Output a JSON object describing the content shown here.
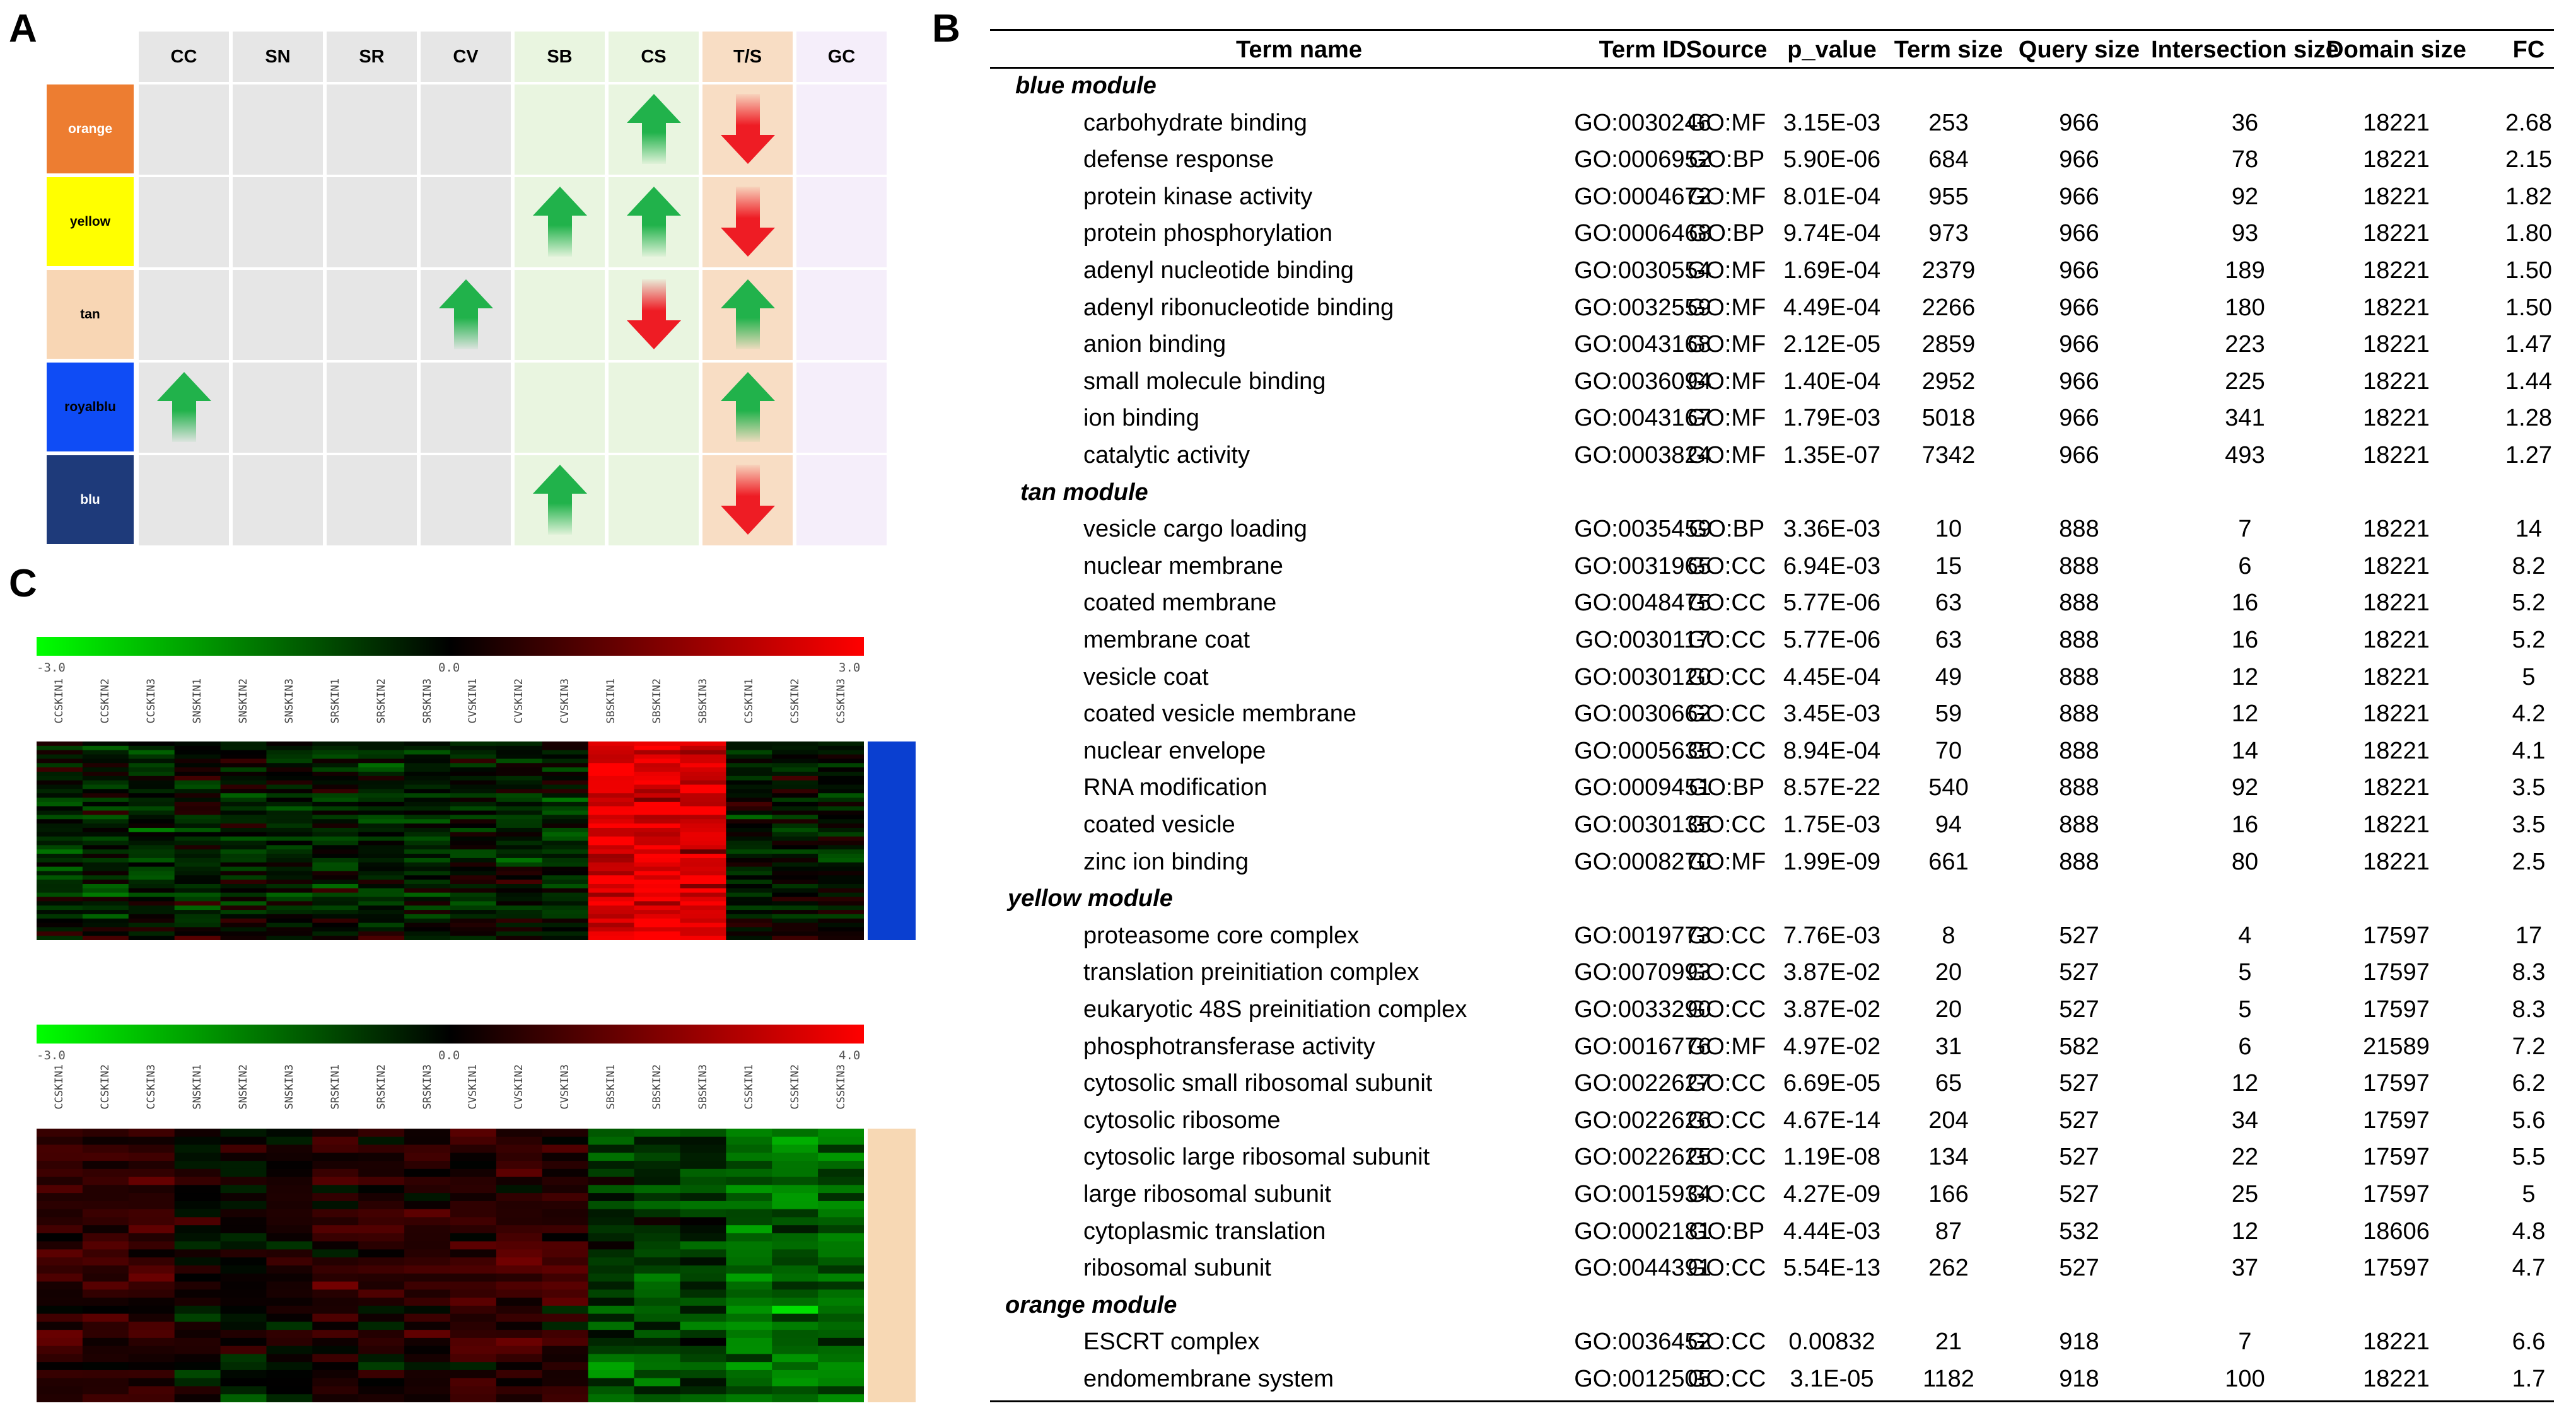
{
  "panel_letters": {
    "a": "A",
    "b": "B",
    "c": "C"
  },
  "panelA": {
    "columns": [
      "CC",
      "SN",
      "SR",
      "CV",
      "SB",
      "CS",
      "T/S",
      "GC"
    ],
    "rows": [
      {
        "label": "orange",
        "color": "#ED7D31",
        "text_color": "#ffffff",
        "arrows": {
          "CS": "up",
          "T/S": "down"
        }
      },
      {
        "label": "yellow",
        "color": "#FFFF00",
        "text_color": "#000000",
        "arrows": {
          "SB": "up",
          "CS": "up",
          "T/S": "down"
        }
      },
      {
        "label": "tan",
        "color": "#F8D6B4",
        "text_color": "#000000",
        "arrows": {
          "CV": "up",
          "CS": "down",
          "T/S": "up"
        }
      },
      {
        "label": "royalblu",
        "color": "#0F4CF5",
        "text_color": "#000000",
        "arrows": {
          "CC": "up",
          "T/S": "up"
        }
      },
      {
        "label": "blu",
        "color": "#1E3A7A",
        "text_color": "#ffffff",
        "arrows": {
          "SB": "up",
          "T/S": "down"
        }
      }
    ],
    "column_colors": [
      "#E6E6E6",
      "#E6E6E6",
      "#E6E6E6",
      "#E6E6E6",
      "#E9F5E0",
      "#E9F5E0",
      "#F8DDC4",
      "#F5EEFA"
    ],
    "arrow_colors": {
      "up": "#21B24B",
      "down": "#EE1C24"
    }
  },
  "panelB": {
    "headers": [
      "Term name",
      "Term ID",
      "Source",
      "p_value",
      "Term size",
      "Query size",
      "Intersection size",
      "Domain size",
      "FC"
    ],
    "modules": [
      {
        "name": "blue module",
        "rows": [
          [
            "carbohydrate binding",
            "GO:0030246",
            "GO:MF",
            "3.15E-03",
            "253",
            "966",
            "36",
            "18221",
            "2.68"
          ],
          [
            "defense response",
            "GO:0006952",
            "GO:BP",
            "5.90E-06",
            "684",
            "966",
            "78",
            "18221",
            "2.15"
          ],
          [
            "protein kinase activity",
            "GO:0004672",
            "GO:MF",
            "8.01E-04",
            "955",
            "966",
            "92",
            "18221",
            "1.82"
          ],
          [
            "protein phosphorylation",
            "GO:0006468",
            "GO:BP",
            "9.74E-04",
            "973",
            "966",
            "93",
            "18221",
            "1.80"
          ],
          [
            "adenyl nucleotide binding",
            "GO:0030554",
            "GO:MF",
            "1.69E-04",
            "2379",
            "966",
            "189",
            "18221",
            "1.50"
          ],
          [
            "adenyl ribonucleotide binding",
            "GO:0032559",
            "GO:MF",
            "4.49E-04",
            "2266",
            "966",
            "180",
            "18221",
            "1.50"
          ],
          [
            "anion binding",
            "GO:0043168",
            "GO:MF",
            "2.12E-05",
            "2859",
            "966",
            "223",
            "18221",
            "1.47"
          ],
          [
            "small molecule binding",
            "GO:0036094",
            "GO:MF",
            "1.40E-04",
            "2952",
            "966",
            "225",
            "18221",
            "1.44"
          ],
          [
            "ion binding",
            "GO:0043167",
            "GO:MF",
            "1.79E-03",
            "5018",
            "966",
            "341",
            "18221",
            "1.28"
          ],
          [
            "catalytic activity",
            "GO:0003824",
            "GO:MF",
            "1.35E-07",
            "7342",
            "966",
            "493",
            "18221",
            "1.27"
          ]
        ]
      },
      {
        "name": "tan module",
        "rows": [
          [
            "vesicle cargo loading",
            "GO:0035459",
            "GO:BP",
            "3.36E-03",
            "10",
            "888",
            "7",
            "18221",
            "14"
          ],
          [
            "nuclear membrane",
            "GO:0031965",
            "GO:CC",
            "6.94E-03",
            "15",
            "888",
            "6",
            "18221",
            "8.2"
          ],
          [
            "coated membrane",
            "GO:0048475",
            "GO:CC",
            "5.77E-06",
            "63",
            "888",
            "16",
            "18221",
            "5.2"
          ],
          [
            "membrane coat",
            "GO:0030117",
            "GO:CC",
            "5.77E-06",
            "63",
            "888",
            "16",
            "18221",
            "5.2"
          ],
          [
            "vesicle coat",
            "GO:0030120",
            "GO:CC",
            "4.45E-04",
            "49",
            "888",
            "12",
            "18221",
            "5"
          ],
          [
            "coated vesicle membrane",
            "GO:0030662",
            "GO:CC",
            "3.45E-03",
            "59",
            "888",
            "12",
            "18221",
            "4.2"
          ],
          [
            "nuclear envelope",
            "GO:0005635",
            "GO:CC",
            "8.94E-04",
            "70",
            "888",
            "14",
            "18221",
            "4.1"
          ],
          [
            "RNA modification",
            "GO:0009451",
            "GO:BP",
            "8.57E-22",
            "540",
            "888",
            "92",
            "18221",
            "3.5"
          ],
          [
            "coated vesicle",
            "GO:0030135",
            "GO:CC",
            "1.75E-03",
            "94",
            "888",
            "16",
            "18221",
            "3.5"
          ],
          [
            "zinc ion binding",
            "GO:0008270",
            "GO:MF",
            "1.99E-09",
            "661",
            "888",
            "80",
            "18221",
            "2.5"
          ]
        ]
      },
      {
        "name": "yellow module",
        "rows": [
          [
            "proteasome core complex",
            "GO:0019773",
            "GO:CC",
            "7.76E-03",
            "8",
            "527",
            "4",
            "17597",
            "17"
          ],
          [
            "translation preinitiation complex",
            "GO:0070993",
            "GO:CC",
            "3.87E-02",
            "20",
            "527",
            "5",
            "17597",
            "8.3"
          ],
          [
            "eukaryotic 48S preinitiation complex",
            "GO:0033290",
            "GO:CC",
            "3.87E-02",
            "20",
            "527",
            "5",
            "17597",
            "8.3"
          ],
          [
            "phosphotransferase activity",
            "GO:0016776",
            "GO:MF",
            "4.97E-02",
            "31",
            "582",
            "6",
            "21589",
            "7.2"
          ],
          [
            "cytosolic small ribosomal subunit",
            "GO:0022627",
            "GO:CC",
            "6.69E-05",
            "65",
            "527",
            "12",
            "17597",
            "6.2"
          ],
          [
            "cytosolic ribosome",
            "GO:0022626",
            "GO:CC",
            "4.67E-14",
            "204",
            "527",
            "34",
            "17597",
            "5.6"
          ],
          [
            "cytosolic large ribosomal subunit",
            "GO:0022625",
            "GO:CC",
            "1.19E-08",
            "134",
            "527",
            "22",
            "17597",
            "5.5"
          ],
          [
            "large ribosomal subunit",
            "GO:0015934",
            "GO:CC",
            "4.27E-09",
            "166",
            "527",
            "25",
            "17597",
            "5"
          ],
          [
            "cytoplasmic translation",
            "GO:0002181",
            "GO:BP",
            "4.44E-03",
            "87",
            "532",
            "12",
            "18606",
            "4.8"
          ],
          [
            "ribosomal subunit",
            "GO:0044391",
            "GO:CC",
            "5.54E-13",
            "262",
            "527",
            "37",
            "17597",
            "4.7"
          ]
        ]
      },
      {
        "name": "orange module",
        "rows": [
          [
            "ESCRT complex",
            "GO:0036452",
            "GO:CC",
            "0.00832",
            "21",
            "918",
            "7",
            "18221",
            "6.6"
          ],
          [
            "endomembrane system",
            "GO:0012505",
            "GO:CC",
            "3.1E-05",
            "1182",
            "918",
            "100",
            "18221",
            "1.7"
          ]
        ]
      }
    ]
  },
  "panelC": {
    "sample_labels": [
      "CCSKIN1",
      "CCSKIN2",
      "CCSKIN3",
      "SNSKIN1",
      "SNSKIN2",
      "SNSKIN3",
      "SRSKIN1",
      "SRSKIN2",
      "SRSKIN3",
      "CVSKIN1",
      "CVSKIN2",
      "CVSKIN3",
      "SBSKIN1",
      "SBSKIN2",
      "SBSKIN3",
      "CSSKIN1",
      "CSSKIN2",
      "CSSKIN3"
    ],
    "heatmaps": [
      {
        "scale_min": "-3.0",
        "scale_mid": "0.0",
        "scale_max": "3.0",
        "module_color": "#0A3FD0",
        "group_means": [
          -0.35,
          -0.2,
          -0.35,
          -0.3,
          2.6,
          -0.2
        ],
        "rows": 46
      },
      {
        "scale_min": "-3.0",
        "scale_mid": "0.0",
        "scale_max": "4.0",
        "module_color": "#F7D8B4",
        "group_means": [
          0.7,
          0.1,
          0.5,
          0.7,
          -0.7,
          -1.2
        ],
        "rows": 34
      }
    ],
    "gradient_colors": {
      "low": "#00FF00",
      "mid": "#000000",
      "high": "#FF0000"
    }
  }
}
